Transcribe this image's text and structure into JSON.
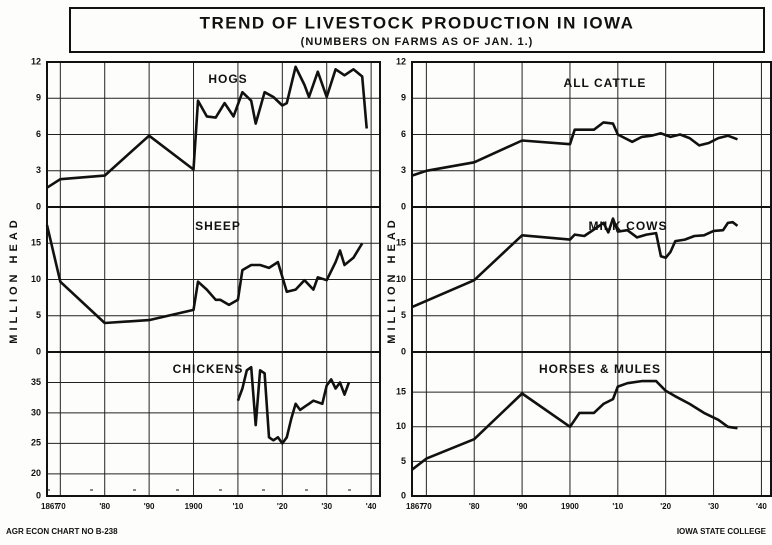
{
  "title": "TREND OF LIVESTOCK PRODUCTION IN IOWA",
  "subtitle": "(NUMBERS ON FARMS AS OF JAN. 1.)",
  "y_label": "MILLION HEAD",
  "footer_left": "AGR ECON CHART NO B-238",
  "footer_right": "IOWA STATE COLLEGE",
  "chart_data": [
    {
      "type": "line",
      "name": "HOGS",
      "color": "#111111",
      "grid": true,
      "x": [
        1867,
        1870,
        1880,
        1890,
        1900,
        1901,
        1903,
        1905,
        1907,
        1909,
        1911,
        1913,
        1914,
        1916,
        1918,
        1920,
        1921,
        1923,
        1925,
        1926,
        1928,
        1930,
        1932,
        1934,
        1936,
        1938,
        1939
      ],
      "values": [
        1.6,
        2.3,
        2.6,
        5.9,
        3.1,
        8.8,
        7.5,
        7.4,
        8.6,
        7.5,
        9.5,
        8.8,
        6.9,
        9.5,
        9.1,
        8.4,
        8.6,
        11.6,
        10.1,
        9.1,
        11.2,
        9.1,
        11.4,
        10.9,
        11.4,
        10.8,
        6.5
      ],
      "xlim": [
        1867,
        1942
      ],
      "ylim": [
        0,
        12
      ],
      "yticks": [
        0,
        3,
        6,
        9,
        12
      ]
    },
    {
      "type": "line",
      "name": "SHEEP",
      "color": "#111111",
      "grid": true,
      "x": [
        1867,
        1870,
        1880,
        1890,
        1900,
        1901,
        1903,
        1905,
        1906,
        1908,
        1910,
        1911,
        1913,
        1915,
        1917,
        1919,
        1921,
        1923,
        1925,
        1927,
        1928,
        1930,
        1932,
        1933,
        1934,
        1936,
        1938
      ],
      "values": [
        17.5,
        9.7,
        4,
        4.4,
        5.8,
        9.7,
        8.6,
        7.2,
        7.2,
        6.5,
        7.2,
        11.3,
        12,
        12,
        11.6,
        12.4,
        8.3,
        8.6,
        9.9,
        8.6,
        10.3,
        9.9,
        12.4,
        14,
        12,
        13,
        15
      ],
      "xlim": [
        1867,
        1942
      ],
      "ylim": [
        0,
        20
      ],
      "yticks": [
        0,
        5,
        10,
        15
      ]
    },
    {
      "type": "line",
      "name": "CHICKENS",
      "color": "#111111",
      "grid": true,
      "axis_break": true,
      "x": [
        1910,
        1911,
        1912,
        1913,
        1914,
        1915,
        1916,
        1917,
        1918,
        1919,
        1920,
        1921,
        1922,
        1923,
        1924,
        1925,
        1926,
        1927,
        1929,
        1930,
        1931,
        1932,
        1933,
        1934,
        1935
      ],
      "values": [
        32,
        34,
        37,
        37.5,
        28,
        37,
        36.5,
        26,
        25.5,
        26,
        25,
        26,
        29,
        31.5,
        30.5,
        31,
        31.5,
        32,
        31.5,
        34.5,
        35.5,
        34,
        35,
        33,
        35
      ],
      "xlim": [
        1867,
        1942
      ],
      "ylim": [
        18,
        40
      ],
      "yticks": [
        0,
        20,
        25,
        30,
        35
      ],
      "xticks": [
        {
          "value": 1867,
          "label": "1867"
        },
        {
          "value": 1870,
          "label": "'70"
        },
        {
          "value": 1880,
          "label": "'80"
        },
        {
          "value": 1890,
          "label": "'90"
        },
        1900,
        {
          "value": 1910,
          "label": "'10"
        },
        {
          "value": 1920,
          "label": "'20"
        },
        {
          "value": 1930,
          "label": "'30"
        },
        {
          "value": 1940,
          "label": "'40"
        }
      ]
    },
    {
      "type": "line",
      "name": "ALL CATTLE",
      "color": "#111111",
      "grid": true,
      "x": [
        1867,
        1870,
        1880,
        1890,
        1900,
        1901,
        1905,
        1907,
        1909,
        1910,
        1913,
        1915,
        1917,
        1919,
        1921,
        1923,
        1925,
        1927,
        1929,
        1931,
        1933,
        1935
      ],
      "values": [
        2.6,
        3,
        3.7,
        5.5,
        5.2,
        6.4,
        6.4,
        7,
        6.9,
        6,
        5.4,
        5.8,
        5.9,
        6.1,
        5.8,
        6,
        5.7,
        5.1,
        5.3,
        5.7,
        5.9,
        5.6
      ],
      "xlim": [
        1867,
        1942
      ],
      "ylim": [
        0,
        12
      ],
      "yticks": [
        0,
        3,
        6,
        9,
        12
      ]
    },
    {
      "type": "line",
      "name": "MILK COWS",
      "color": "#111111",
      "grid": true,
      "x": [
        1867,
        1880,
        1890,
        1900,
        1901,
        1903,
        1905,
        1907,
        1908,
        1909,
        1910,
        1912,
        1914,
        1916,
        1918,
        1919,
        1920,
        1921,
        1922,
        1924,
        1926,
        1928,
        1930,
        1932,
        1933,
        1934,
        1935
      ],
      "values": [
        6.2,
        9.9,
        16.1,
        15.5,
        16.2,
        16,
        16.9,
        17.8,
        16.5,
        18.4,
        16.6,
        16.8,
        15.8,
        16.2,
        16.4,
        13.2,
        13,
        13.8,
        15.3,
        15.5,
        16,
        16.1,
        16.7,
        16.8,
        17.8,
        17.9,
        17.4
      ],
      "xlim": [
        1867,
        1942
      ],
      "ylim": [
        0,
        20
      ],
      "yticks": [
        0,
        5,
        10,
        15
      ]
    },
    {
      "type": "line",
      "name": "HORSES & MULES",
      "color": "#111111",
      "grid": true,
      "x": [
        1867,
        1870,
        1880,
        1890,
        1900,
        1902,
        1905,
        1907,
        1909,
        1910,
        1912,
        1915,
        1918,
        1920,
        1922,
        1925,
        1928,
        1931,
        1933,
        1935
      ],
      "values": [
        3.8,
        5.4,
        8.2,
        14.8,
        10,
        12,
        12,
        13.3,
        14,
        15.8,
        16.3,
        16.6,
        16.6,
        15.2,
        14.4,
        13.3,
        12,
        11,
        10,
        9.8
      ],
      "xlim": [
        1867,
        1942
      ],
      "ylim": [
        0,
        20.8
      ],
      "yticks": [
        0,
        5,
        10,
        15
      ],
      "xticks": [
        {
          "value": 1867,
          "label": "1867"
        },
        {
          "value": 1870,
          "label": "'70"
        },
        {
          "value": 1880,
          "label": "'80"
        },
        {
          "value": 1890,
          "label": "'90"
        },
        1900,
        {
          "value": 1910,
          "label": "'10"
        },
        {
          "value": 1920,
          "label": "'20"
        },
        {
          "value": 1930,
          "label": "'30"
        },
        {
          "value": 1940,
          "label": "'40"
        }
      ]
    }
  ]
}
